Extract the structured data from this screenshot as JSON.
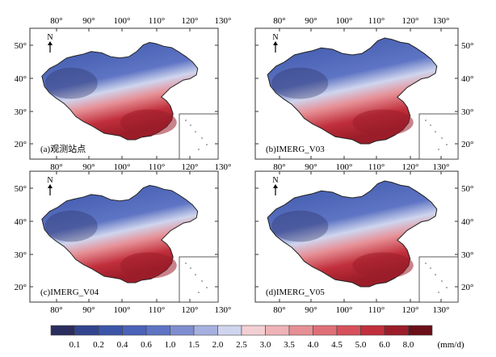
{
  "figure": {
    "lon_ticks": [
      "80°",
      "90°",
      "100°",
      "110°",
      "120°",
      "130°"
    ],
    "lat_ticks": [
      "50°",
      "40°",
      "30°",
      "20°"
    ],
    "north_label": "N",
    "panels": [
      {
        "label": "(a)观测站点"
      },
      {
        "label": "(b)IMERG_V03"
      },
      {
        "label": "(c)IMERG_V04"
      },
      {
        "label": "(d)IMERG_V05"
      }
    ]
  },
  "colorbar": {
    "unit": "(mm/d)",
    "ticks": [
      "0.1",
      "0.2",
      "0.4",
      "0.6",
      "1.0",
      "1.5",
      "2.0",
      "2.5",
      "3.0",
      "3.5",
      "4.0",
      "4.5",
      "5.0",
      "6.0",
      "8.0"
    ],
    "colors": [
      "#2b2d5e",
      "#33448f",
      "#3b55a8",
      "#4a62b8",
      "#5e74c4",
      "#7f8ed0",
      "#a6b0df",
      "#cfd5ee",
      "#f2cfd2",
      "#eeb3b7",
      "#e68f95",
      "#df6f77",
      "#d6515b",
      "#c12f3c",
      "#9b1d29",
      "#6b0f19"
    ]
  }
}
